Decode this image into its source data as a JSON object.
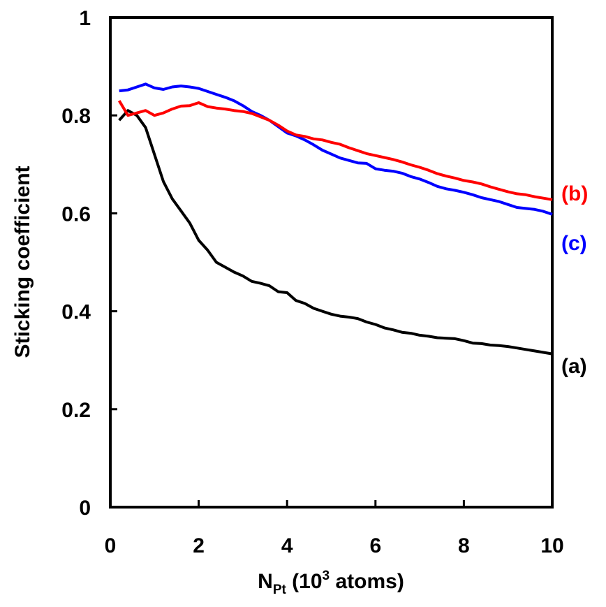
{
  "chart_data": {
    "type": "line",
    "title": "",
    "xlabel_main": "N",
    "xlabel_sub": "Pt",
    "xlabel_paren_open": " (10",
    "xlabel_sup": "3",
    "xlabel_rest": " atoms)",
    "ylabel": "Sticking coefficient",
    "xlim": [
      0,
      10
    ],
    "ylim": [
      0,
      1
    ],
    "x_ticks": [
      0,
      2,
      4,
      6,
      8,
      10
    ],
    "y_ticks": [
      0,
      0.2,
      0.4,
      0.6,
      0.8,
      1
    ],
    "x_tick_labels": [
      "0",
      "2",
      "4",
      "6",
      "8",
      "10"
    ],
    "y_tick_labels": [
      "0",
      "0.2",
      "0.4",
      "0.6",
      "0.8",
      "1"
    ],
    "grid": false,
    "series": [
      {
        "name": "(a)",
        "color": "#000000",
        "points": [
          [
            0.2,
            0.79
          ],
          [
            0.4,
            0.81
          ],
          [
            0.6,
            0.8
          ],
          [
            0.8,
            0.775
          ],
          [
            1.0,
            0.72
          ],
          [
            1.2,
            0.665
          ],
          [
            1.4,
            0.63
          ],
          [
            1.6,
            0.605
          ],
          [
            1.8,
            0.58
          ],
          [
            2.0,
            0.545
          ],
          [
            2.2,
            0.525
          ],
          [
            2.4,
            0.5
          ],
          [
            2.6,
            0.49
          ],
          [
            2.8,
            0.48
          ],
          [
            3.0,
            0.472
          ],
          [
            3.2,
            0.461
          ],
          [
            3.4,
            0.457
          ],
          [
            3.6,
            0.452
          ],
          [
            3.8,
            0.44
          ],
          [
            4.0,
            0.438
          ],
          [
            4.2,
            0.422
          ],
          [
            4.4,
            0.416
          ],
          [
            4.6,
            0.406
          ],
          [
            4.8,
            0.4
          ],
          [
            5.0,
            0.394
          ],
          [
            5.2,
            0.39
          ],
          [
            5.4,
            0.388
          ],
          [
            5.6,
            0.385
          ],
          [
            5.8,
            0.378
          ],
          [
            6.0,
            0.373
          ],
          [
            6.2,
            0.366
          ],
          [
            6.4,
            0.362
          ],
          [
            6.6,
            0.357
          ],
          [
            6.8,
            0.355
          ],
          [
            7.0,
            0.351
          ],
          [
            7.2,
            0.349
          ],
          [
            7.4,
            0.346
          ],
          [
            7.6,
            0.345
          ],
          [
            7.8,
            0.344
          ],
          [
            8.0,
            0.34
          ],
          [
            8.2,
            0.335
          ],
          [
            8.4,
            0.334
          ],
          [
            8.6,
            0.331
          ],
          [
            8.8,
            0.33
          ],
          [
            9.0,
            0.328
          ],
          [
            9.2,
            0.325
          ],
          [
            9.4,
            0.322
          ],
          [
            9.6,
            0.319
          ],
          [
            9.8,
            0.316
          ],
          [
            10.0,
            0.313
          ]
        ]
      },
      {
        "name": "(b)",
        "color": "#ff0000",
        "points": [
          [
            0.2,
            0.83
          ],
          [
            0.4,
            0.8
          ],
          [
            0.6,
            0.805
          ],
          [
            0.8,
            0.81
          ],
          [
            1.0,
            0.8
          ],
          [
            1.2,
            0.805
          ],
          [
            1.4,
            0.813
          ],
          [
            1.6,
            0.819
          ],
          [
            1.8,
            0.82
          ],
          [
            2.0,
            0.826
          ],
          [
            2.2,
            0.818
          ],
          [
            2.4,
            0.815
          ],
          [
            2.6,
            0.813
          ],
          [
            2.8,
            0.81
          ],
          [
            3.0,
            0.808
          ],
          [
            3.2,
            0.804
          ],
          [
            3.4,
            0.797
          ],
          [
            3.6,
            0.79
          ],
          [
            3.8,
            0.78
          ],
          [
            4.0,
            0.768
          ],
          [
            4.2,
            0.76
          ],
          [
            4.4,
            0.757
          ],
          [
            4.6,
            0.752
          ],
          [
            4.8,
            0.75
          ],
          [
            5.0,
            0.745
          ],
          [
            5.2,
            0.741
          ],
          [
            5.4,
            0.734
          ],
          [
            5.6,
            0.728
          ],
          [
            5.8,
            0.722
          ],
          [
            6.0,
            0.718
          ],
          [
            6.2,
            0.714
          ],
          [
            6.4,
            0.71
          ],
          [
            6.6,
            0.705
          ],
          [
            6.8,
            0.699
          ],
          [
            7.0,
            0.694
          ],
          [
            7.2,
            0.688
          ],
          [
            7.4,
            0.681
          ],
          [
            7.6,
            0.676
          ],
          [
            7.8,
            0.672
          ],
          [
            8.0,
            0.667
          ],
          [
            8.2,
            0.664
          ],
          [
            8.4,
            0.66
          ],
          [
            8.6,
            0.654
          ],
          [
            8.8,
            0.649
          ],
          [
            9.0,
            0.644
          ],
          [
            9.2,
            0.64
          ],
          [
            9.4,
            0.638
          ],
          [
            9.6,
            0.634
          ],
          [
            9.8,
            0.631
          ],
          [
            10.0,
            0.628
          ]
        ]
      },
      {
        "name": "(c)",
        "color": "#0000ff",
        "points": [
          [
            0.2,
            0.85
          ],
          [
            0.4,
            0.852
          ],
          [
            0.6,
            0.858
          ],
          [
            0.8,
            0.864
          ],
          [
            1.0,
            0.856
          ],
          [
            1.2,
            0.853
          ],
          [
            1.4,
            0.858
          ],
          [
            1.6,
            0.86
          ],
          [
            1.8,
            0.858
          ],
          [
            2.0,
            0.855
          ],
          [
            2.2,
            0.849
          ],
          [
            2.4,
            0.843
          ],
          [
            2.6,
            0.837
          ],
          [
            2.8,
            0.83
          ],
          [
            3.0,
            0.82
          ],
          [
            3.2,
            0.808
          ],
          [
            3.4,
            0.8
          ],
          [
            3.6,
            0.79
          ],
          [
            3.8,
            0.777
          ],
          [
            4.0,
            0.764
          ],
          [
            4.2,
            0.758
          ],
          [
            4.4,
            0.75
          ],
          [
            4.6,
            0.74
          ],
          [
            4.8,
            0.729
          ],
          [
            5.0,
            0.721
          ],
          [
            5.2,
            0.713
          ],
          [
            5.4,
            0.708
          ],
          [
            5.6,
            0.703
          ],
          [
            5.8,
            0.702
          ],
          [
            6.0,
            0.691
          ],
          [
            6.2,
            0.688
          ],
          [
            6.4,
            0.686
          ],
          [
            6.6,
            0.682
          ],
          [
            6.8,
            0.675
          ],
          [
            7.0,
            0.67
          ],
          [
            7.2,
            0.663
          ],
          [
            7.4,
            0.655
          ],
          [
            7.6,
            0.65
          ],
          [
            7.8,
            0.647
          ],
          [
            8.0,
            0.643
          ],
          [
            8.2,
            0.638
          ],
          [
            8.4,
            0.632
          ],
          [
            8.6,
            0.628
          ],
          [
            8.8,
            0.624
          ],
          [
            9.0,
            0.618
          ],
          [
            9.2,
            0.612
          ],
          [
            9.4,
            0.61
          ],
          [
            9.6,
            0.608
          ],
          [
            9.8,
            0.604
          ],
          [
            10.0,
            0.598
          ]
        ]
      }
    ]
  }
}
